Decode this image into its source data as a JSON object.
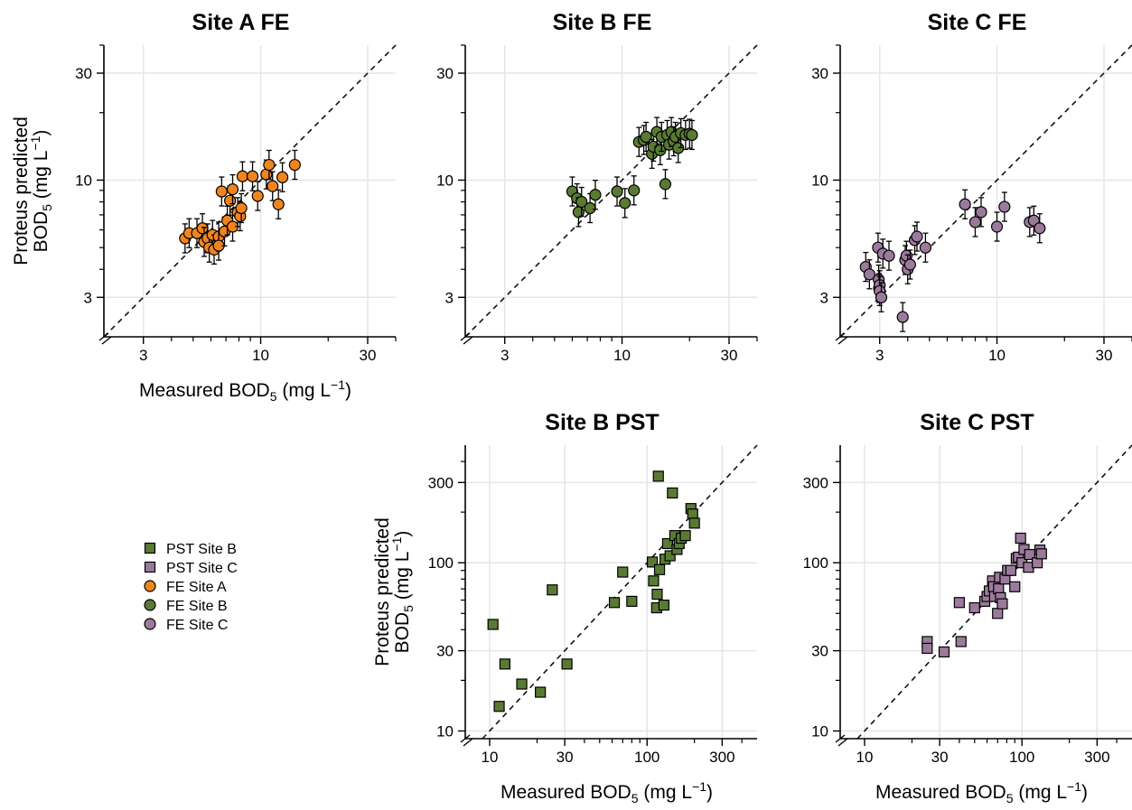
{
  "chart_data": [
    {
      "type": "scatter",
      "title": "Site A FE",
      "scale": "log",
      "xlim": [
        2,
        40
      ],
      "ylim": [
        2,
        40
      ],
      "xticks": [
        "3",
        "10",
        "30"
      ],
      "yticks": [
        "3",
        "10",
        "30"
      ],
      "xlabel": {
        "pre": "Measured  BOD",
        "sub": "5",
        "post": " (mg L",
        "sup": "−1",
        "end": ")"
      },
      "ylabel_line1": "Proteus predicted",
      "ylabel_line2": {
        "pre": "BOD",
        "sub": "5",
        "post": " (mg L",
        "sup": "−1",
        "end": ")"
      },
      "reference_line": "1:1 dashed",
      "grid": true,
      "series": [
        {
          "marker": "circle",
          "color": "#F0841E",
          "points": [
            [
              4.6,
              5.5
            ],
            [
              4.8,
              5.8
            ],
            [
              5.2,
              5.8
            ],
            [
              5.5,
              6.1
            ],
            [
              5.6,
              5.3
            ],
            [
              5.8,
              5.5
            ],
            [
              5.9,
              5.0
            ],
            [
              6.1,
              5.7
            ],
            [
              6.2,
              4.9
            ],
            [
              6.5,
              5.6
            ],
            [
              6.5,
              5.1
            ],
            [
              6.7,
              8.9
            ],
            [
              6.9,
              5.9
            ],
            [
              7.1,
              6.6
            ],
            [
              7.3,
              8.1
            ],
            [
              7.5,
              9.1
            ],
            [
              7.5,
              6.2
            ],
            [
              7.9,
              7.2
            ],
            [
              8.1,
              6.9
            ],
            [
              8.2,
              7.5
            ],
            [
              8.3,
              10.4
            ],
            [
              9.2,
              10.4
            ],
            [
              9.7,
              8.5
            ],
            [
              10.6,
              10.6
            ],
            [
              10.9,
              11.7
            ],
            [
              11.3,
              9.4
            ],
            [
              12.0,
              7.8
            ],
            [
              12.5,
              10.3
            ],
            [
              14.2,
              11.7
            ]
          ]
        }
      ]
    },
    {
      "type": "scatter",
      "title": "Site B FE",
      "scale": "log",
      "xlim": [
        2,
        40
      ],
      "ylim": [
        2,
        40
      ],
      "xticks": [
        "3",
        "10",
        "30"
      ],
      "yticks": [
        "3",
        "10",
        "30"
      ],
      "reference_line": "1:1 dashed",
      "grid": true,
      "series": [
        {
          "marker": "circle",
          "color": "#597A33",
          "points": [
            [
              6.0,
              8.9
            ],
            [
              6.3,
              8.3
            ],
            [
              6.4,
              7.2
            ],
            [
              6.6,
              8.0
            ],
            [
              7.2,
              7.5
            ],
            [
              7.6,
              8.6
            ],
            [
              9.5,
              8.9
            ],
            [
              10.3,
              7.9
            ],
            [
              11.3,
              9.0
            ],
            [
              11.9,
              14.8
            ],
            [
              12.5,
              15.1
            ],
            [
              12.8,
              15.6
            ],
            [
              13.6,
              13.1
            ],
            [
              13.8,
              14.1
            ],
            [
              14.3,
              16.4
            ],
            [
              14.8,
              13.6
            ],
            [
              15.0,
              15.6
            ],
            [
              15.6,
              9.6
            ],
            [
              15.9,
              15.9
            ],
            [
              16.2,
              14.4
            ],
            [
              16.6,
              16.4
            ],
            [
              17.0,
              14.9
            ],
            [
              17.3,
              15.6
            ],
            [
              17.8,
              13.9
            ],
            [
              18.3,
              16.2
            ],
            [
              19.2,
              15.9
            ],
            [
              20.0,
              16.1
            ],
            [
              20.5,
              15.9
            ]
          ]
        }
      ]
    },
    {
      "type": "scatter",
      "title": "Site C FE",
      "scale": "log",
      "xlim": [
        2,
        40
      ],
      "ylim": [
        2,
        40
      ],
      "xticks": [
        "3",
        "10",
        "30"
      ],
      "yticks": [
        "3",
        "10",
        "30"
      ],
      "reference_line": "1:1 dashed",
      "grid": true,
      "series": [
        {
          "marker": "circle",
          "color": "#9C7A9C",
          "points": [
            [
              2.6,
              4.1
            ],
            [
              2.7,
              3.8
            ],
            [
              2.95,
              5.0
            ],
            [
              2.97,
              3.6
            ],
            [
              2.98,
              3.3
            ],
            [
              3.0,
              3.4
            ],
            [
              3.0,
              3.2
            ],
            [
              3.05,
              3.0
            ],
            [
              3.1,
              4.7
            ],
            [
              3.3,
              4.6
            ],
            [
              3.8,
              2.45
            ],
            [
              3.9,
              4.4
            ],
            [
              3.95,
              4.6
            ],
            [
              4.0,
              4.0
            ],
            [
              4.1,
              4.2
            ],
            [
              4.3,
              5.4
            ],
            [
              4.4,
              5.6
            ],
            [
              4.8,
              5.0
            ],
            [
              7.2,
              7.8
            ],
            [
              8.0,
              6.5
            ],
            [
              8.5,
              7.2
            ],
            [
              10.0,
              6.2
            ],
            [
              10.8,
              7.6
            ],
            [
              14.0,
              6.5
            ],
            [
              14.6,
              6.6
            ],
            [
              15.5,
              6.1
            ]
          ]
        }
      ]
    },
    {
      "type": "scatter",
      "title": "Site B PST",
      "scale": "log",
      "xlim": [
        7,
        500
      ],
      "ylim": [
        9,
        500
      ],
      "xticks": [
        "10",
        "30",
        "100",
        "300"
      ],
      "yticks": [
        "10",
        "30",
        "100",
        "300"
      ],
      "xlabel": {
        "pre": "Measured  BOD",
        "sub": "5",
        "post": " (mg L",
        "sup": "−1",
        "end": ")"
      },
      "ylabel_line1": "Proteus predicted",
      "ylabel_line2": {
        "pre": "BOD",
        "sub": "5",
        "post": " (mg L",
        "sup": "−1",
        "end": ")"
      },
      "reference_line": "1:1 dashed",
      "grid": true,
      "series": [
        {
          "marker": "square",
          "color": "#597A33",
          "points": [
            [
              10.5,
              43
            ],
            [
              11.5,
              14
            ],
            [
              12.5,
              25
            ],
            [
              16,
              19
            ],
            [
              21,
              17
            ],
            [
              25,
              69
            ],
            [
              31,
              25
            ],
            [
              62,
              58
            ],
            [
              70,
              88
            ],
            [
              80,
              59
            ],
            [
              108,
              101
            ],
            [
              110,
              78
            ],
            [
              115,
              54
            ],
            [
              116,
              65
            ],
            [
              118,
              327
            ],
            [
              120,
              91
            ],
            [
              128,
              56
            ],
            [
              130,
              105
            ],
            [
              135,
              130
            ],
            [
              140,
              110
            ],
            [
              145,
              260
            ],
            [
              150,
              145
            ],
            [
              155,
              120
            ],
            [
              160,
              130
            ],
            [
              165,
              140
            ],
            [
              175,
              145
            ],
            [
              190,
              210
            ],
            [
              195,
              195
            ],
            [
              200,
              172
            ]
          ]
        }
      ]
    },
    {
      "type": "scatter",
      "title": "Site C PST",
      "scale": "log",
      "xlim": [
        7,
        500
      ],
      "ylim": [
        9,
        500
      ],
      "xticks": [
        "10",
        "30",
        "100",
        "300"
      ],
      "yticks": [
        "10",
        "30",
        "100",
        "300"
      ],
      "xlabel": {
        "pre": "Measured  BOD",
        "sub": "5",
        "post": " (mg L",
        "sup": "−1",
        "end": ")"
      },
      "reference_line": "1:1 dashed",
      "grid": true,
      "series": [
        {
          "marker": "square",
          "color": "#9C7A9C",
          "points": [
            [
              25,
              34
            ],
            [
              25,
              31
            ],
            [
              32,
              29.5
            ],
            [
              40,
              58
            ],
            [
              41,
              34
            ],
            [
              50,
              54
            ],
            [
              58,
              59
            ],
            [
              60,
              63
            ],
            [
              62,
              68
            ],
            [
              65,
              78
            ],
            [
              66,
              72
            ],
            [
              67,
              63
            ],
            [
              70,
              50
            ],
            [
              71,
              70
            ],
            [
              72,
              82
            ],
            [
              73,
              62
            ],
            [
              75,
              57
            ],
            [
              78,
              80
            ],
            [
              81,
              90
            ],
            [
              85,
              90
            ],
            [
              90,
              72
            ],
            [
              92,
              106
            ],
            [
              95,
              108
            ],
            [
              98,
              140
            ],
            [
              100,
              100
            ],
            [
              103,
              120
            ],
            [
              110,
              94
            ],
            [
              112,
              112
            ],
            [
              125,
              100
            ],
            [
              130,
              119
            ],
            [
              133,
              113
            ]
          ]
        }
      ]
    }
  ],
  "legend": {
    "placement": "left, bottom row",
    "entries": [
      {
        "label": "PST Site B",
        "marker": "square",
        "color": "#597A33"
      },
      {
        "label": "PST Site C",
        "marker": "square",
        "color": "#9C7A9C"
      },
      {
        "label": "FE Site A",
        "marker": "circle",
        "color": "#F0841E"
      },
      {
        "label": "FE Site B",
        "marker": "circle",
        "color": "#597A33"
      },
      {
        "label": "FE Site C",
        "marker": "circle",
        "color": "#9C7A9C"
      }
    ]
  }
}
